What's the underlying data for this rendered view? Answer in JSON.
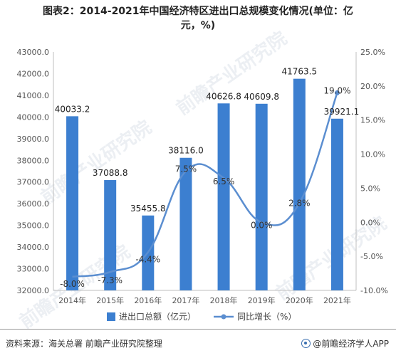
{
  "header": {
    "title_line1": "图表2：2014-2021年中国经济特区进出口总规模变化情况(单位：亿",
    "title_line2": "元，%)"
  },
  "footer": {
    "source": "资料来源：海关总署 前瞻产业研究院整理",
    "brand": "@前瞻经济学人APP"
  },
  "watermark": "前瞻产业研究院",
  "chart_data": {
    "type": "bar",
    "categories": [
      "2014年",
      "2015年",
      "2016年",
      "2017年",
      "2018年",
      "2019年",
      "2020年",
      "2021年"
    ],
    "series": [
      {
        "name": "进出口总额（亿元）",
        "type": "bar",
        "axis": "left",
        "color": "#3c7fd0",
        "values": [
          40033.2,
          37088.8,
          35455.8,
          38116.0,
          40626.8,
          40609.8,
          41763.5,
          39921.1
        ],
        "labels": [
          "40033.2",
          "37088.8",
          "35455.8",
          "38116.0",
          "40626.8",
          "40609.8",
          "41763.5",
          "39921.1"
        ]
      },
      {
        "name": "同比增长（%）",
        "type": "line",
        "axis": "right",
        "color": "#5b8ed0",
        "values": [
          -8.0,
          -7.3,
          -4.4,
          7.5,
          6.5,
          0.0,
          2.8,
          19.0
        ],
        "labels": [
          "-8.0%",
          "-7.3%",
          "-4.4%",
          "7.5%",
          "6.5%",
          "0.0%",
          "2.8%",
          "19.0%"
        ]
      }
    ],
    "y_left": {
      "range": [
        32000,
        43000
      ],
      "ticks": [
        32000,
        33000,
        34000,
        35000,
        36000,
        37000,
        38000,
        39000,
        40000,
        41000,
        42000,
        43000
      ],
      "tick_labels": [
        "32000.0",
        "33000.0",
        "34000.0",
        "35000.0",
        "36000.0",
        "37000.0",
        "38000.0",
        "39000.0",
        "40000.0",
        "41000.0",
        "42000.0",
        "43000.0"
      ]
    },
    "y_right": {
      "range": [
        -10,
        25
      ],
      "ticks": [
        -10,
        -5,
        0,
        5,
        10,
        15,
        20,
        25
      ],
      "tick_labels": [
        "-10.0%",
        "-5.0%",
        "0.0%",
        "5.0%",
        "10.0%",
        "15.0%",
        "20.0%",
        "25.0%"
      ]
    },
    "grid": false,
    "legend_position": "bottom",
    "legend": [
      "进出口总额（亿元）",
      "同比增长（%）"
    ]
  }
}
